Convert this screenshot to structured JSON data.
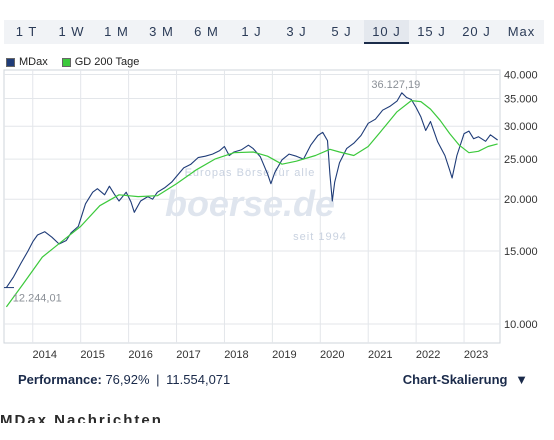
{
  "tabs": [
    "1 T",
    "1 W",
    "1 M",
    "3 M",
    "6 M",
    "1 J",
    "3 J",
    "5 J",
    "10 J",
    "15 J",
    "20 J",
    "Max"
  ],
  "active_tab": "10 J",
  "legend": [
    {
      "label": "MDax",
      "color": "#1f3c78"
    },
    {
      "label": "GD 200 Tage",
      "color": "#3cc93c"
    }
  ],
  "watermark": {
    "line1": "Europas Börse für alle",
    "brand": "boerse.de",
    "line2": "seit 1994"
  },
  "chart_data": {
    "type": "line",
    "x_ticks": [
      "2014",
      "2015",
      "2016",
      "2017",
      "2018",
      "2019",
      "2020",
      "2021",
      "2022",
      "2023"
    ],
    "y_scale": "log",
    "y_ticks": [
      10000,
      15000,
      20000,
      25000,
      30000,
      35000,
      40000
    ],
    "y_tick_labels": [
      "10.000",
      "15.000",
      "20.000",
      "25.000",
      "30.000",
      "35.000",
      "40.000"
    ],
    "ylim": [
      9000,
      41000
    ],
    "xlim": [
      2013.4,
      2023.75
    ],
    "annotations": [
      {
        "text": "36.127,19",
        "x": 2021.65,
        "y": 36127.19
      },
      {
        "text": "12.244,01",
        "x": 2013.5,
        "y": 12244.01
      }
    ],
    "series": [
      {
        "name": "MDax",
        "color": "#1f3c78",
        "x": [
          2013.45,
          2013.6,
          2013.75,
          2013.9,
          2014.0,
          2014.1,
          2014.25,
          2014.4,
          2014.55,
          2014.7,
          2014.8,
          2014.95,
          2015.1,
          2015.25,
          2015.35,
          2015.5,
          2015.6,
          2015.7,
          2015.8,
          2015.95,
          2016.05,
          2016.12,
          2016.25,
          2016.4,
          2016.5,
          2016.6,
          2016.75,
          2016.9,
          2017.0,
          2017.15,
          2017.3,
          2017.45,
          2017.6,
          2017.75,
          2017.9,
          2018.0,
          2018.1,
          2018.2,
          2018.35,
          2018.5,
          2018.6,
          2018.75,
          2018.9,
          2018.97,
          2019.05,
          2019.2,
          2019.35,
          2019.5,
          2019.65,
          2019.8,
          2019.95,
          2020.05,
          2020.15,
          2020.2,
          2020.25,
          2020.3,
          2020.4,
          2020.55,
          2020.7,
          2020.85,
          2021.0,
          2021.15,
          2021.3,
          2021.45,
          2021.6,
          2021.7,
          2021.8,
          2021.9,
          2022.0,
          2022.1,
          2022.2,
          2022.3,
          2022.45,
          2022.6,
          2022.7,
          2022.75,
          2022.85,
          2023.0,
          2023.1,
          2023.2,
          2023.3,
          2023.45,
          2023.55,
          2023.7
        ],
        "y": [
          12244,
          13000,
          14000,
          15000,
          15800,
          16400,
          16700,
          16200,
          15600,
          15900,
          16600,
          17200,
          19500,
          20800,
          21200,
          20500,
          21500,
          20600,
          19800,
          20800,
          19700,
          18600,
          19800,
          20300,
          20000,
          20800,
          21300,
          22000,
          22700,
          23800,
          24300,
          25200,
          25400,
          25700,
          26200,
          26800,
          25500,
          26000,
          26300,
          27000,
          26500,
          25300,
          23000,
          21800,
          23200,
          24900,
          25700,
          25400,
          25000,
          27000,
          28500,
          29000,
          27700,
          23000,
          19800,
          22000,
          24500,
          26500,
          27300,
          28500,
          30500,
          31200,
          32800,
          33500,
          34500,
          36127,
          35200,
          34800,
          33300,
          31600,
          29300,
          30800,
          27500,
          25500,
          23500,
          22500,
          25500,
          28800,
          29200,
          28000,
          28300,
          27600,
          28600,
          27800
        ]
      },
      {
        "name": "GD 200 Tage",
        "color": "#3cc93c",
        "x": [
          2013.45,
          2013.8,
          2014.2,
          2014.6,
          2015.0,
          2015.4,
          2015.8,
          2016.2,
          2016.6,
          2017.0,
          2017.4,
          2017.8,
          2018.2,
          2018.6,
          2018.9,
          2019.2,
          2019.5,
          2019.9,
          2020.2,
          2020.4,
          2020.7,
          2021.0,
          2021.3,
          2021.6,
          2021.9,
          2022.1,
          2022.3,
          2022.5,
          2022.7,
          2022.9,
          2023.1,
          2023.3,
          2023.5,
          2023.7
        ],
        "y": [
          11000,
          12500,
          14500,
          15800,
          17200,
          19300,
          20500,
          20300,
          20400,
          21800,
          23500,
          25000,
          25900,
          26000,
          25400,
          24300,
          24700,
          25500,
          26400,
          26000,
          25500,
          26800,
          29500,
          32500,
          34600,
          34400,
          33000,
          31000,
          28800,
          27000,
          25900,
          26100,
          26800,
          27200
        ]
      }
    ]
  },
  "performance": {
    "label": "Performance:",
    "percent": "76,92%",
    "separator": "|",
    "points": "11.554,071"
  },
  "scaling": {
    "label": "Chart-Skalierung",
    "arrow": "▼"
  },
  "cut_text": "MDax Nachrichten"
}
